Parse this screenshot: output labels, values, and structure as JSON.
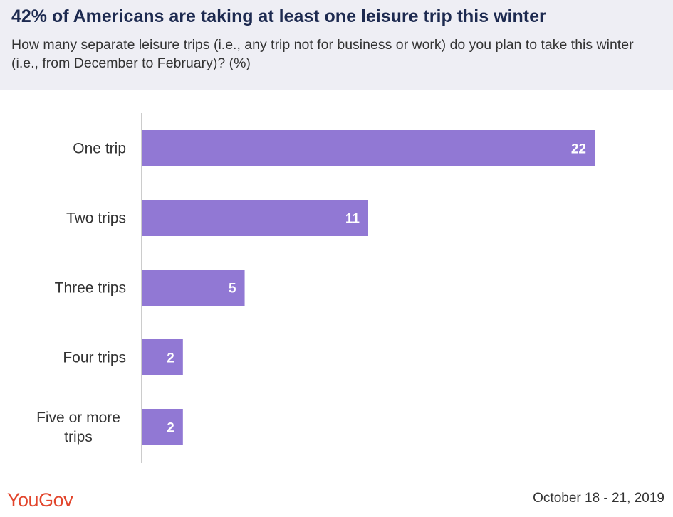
{
  "header": {
    "title": "42% of Americans are taking at least one leisure trip this winter",
    "subtitle": "How many separate leisure trips (i.e., any trip not for business or work) do you plan to take this winter (i.e., from December to February)? (%)"
  },
  "footer": {
    "logo": "YouGov",
    "date": "October 18 - 21, 2019"
  },
  "colors": {
    "bar": "#9178d4",
    "axis": "#cccccc",
    "label": "#333333",
    "value_label": "#ffffff"
  },
  "chart_data": {
    "type": "bar",
    "orientation": "horizontal",
    "title": "42% of Americans are taking at least one leisure trip this winter",
    "categories": [
      "One trip",
      "Two trips",
      "Three trips",
      "Four trips",
      "Five or more trips"
    ],
    "category_lines": [
      [
        "One trip"
      ],
      [
        "Two trips"
      ],
      [
        "Three trips"
      ],
      [
        "Four trips"
      ],
      [
        "Five or more",
        "trips"
      ]
    ],
    "values": [
      22,
      11,
      5,
      2,
      2
    ],
    "data_labels": [
      "22",
      "11",
      "5",
      "2",
      "2"
    ],
    "xlim": [
      0,
      24
    ],
    "grid": false,
    "legend": "none"
  }
}
